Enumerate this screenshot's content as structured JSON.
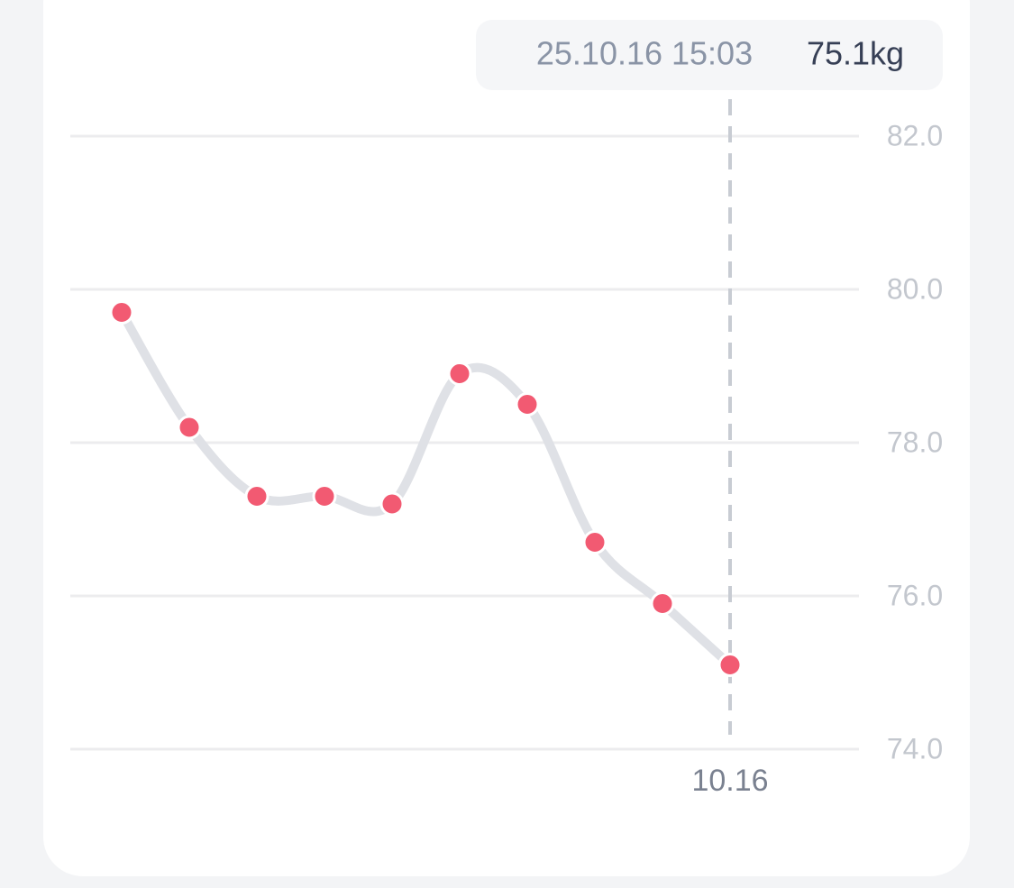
{
  "chart_data": {
    "type": "line",
    "categories": [
      null,
      null,
      null,
      null,
      null,
      null,
      null,
      null,
      null,
      "10.16"
    ],
    "series": [
      {
        "color": "#dfe1e6",
        "marker_color": "#f25a72",
        "values": [
          79.7,
          78.2,
          77.3,
          77.3,
          77.2,
          78.9,
          78.5,
          76.7,
          75.9,
          75.1
        ],
        "value_labels": [
          null,
          null,
          null,
          null,
          null,
          null,
          null,
          null,
          null,
          "75.1kg"
        ]
      }
    ],
    "tooltip_title": "25.10.16 15:03",
    "ylim": [
      74,
      82
    ],
    "yticks": [
      {
        "value": 74,
        "label": "74.0"
      },
      {
        "value": 76,
        "label": "76.0"
      },
      {
        "value": 78,
        "label": "78.0"
      },
      {
        "value": 80,
        "label": "80.0"
      },
      {
        "value": 82,
        "label": "82.0"
      }
    ],
    "grid": true,
    "smooth": true
  }
}
